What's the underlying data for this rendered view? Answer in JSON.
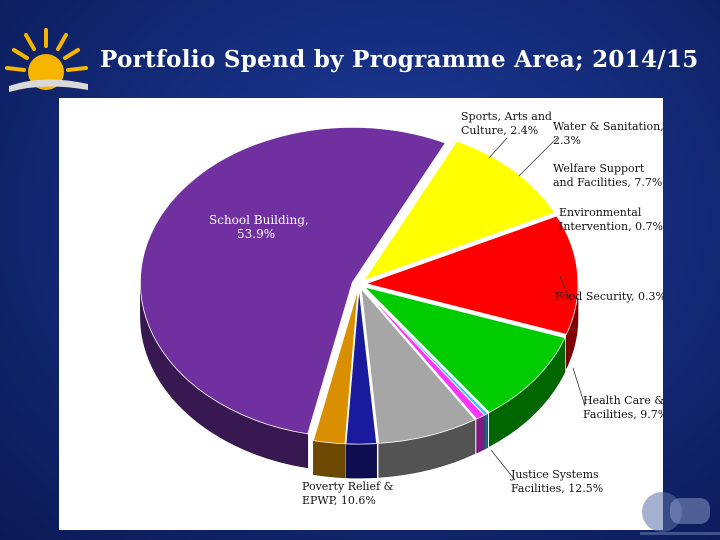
{
  "slide": {
    "title": "Portfolio Spend by Programme Area; 2014/15"
  },
  "colors": {
    "background": "#142c7c",
    "title_text": "#ffffff",
    "sun": "#f7b500"
  },
  "chart_data": {
    "type": "pie",
    "style": "3d-exploded",
    "slices": [
      {
        "label_lines": [
          "School Building,",
          "53.9%"
        ],
        "category": "School Building",
        "value": 53.9,
        "color": "#7030a0"
      },
      {
        "label_lines": [
          "Sports, Arts and",
          "Culture, 2.4%"
        ],
        "category": "Sports, Arts and Culture",
        "value": 2.4,
        "color": "#d98f00"
      },
      {
        "label_lines": [
          "Water & Sanitation,",
          "2.3%"
        ],
        "category": "Water & Sanitation",
        "value": 2.3,
        "color": "#1a1a9e"
      },
      {
        "label_lines": [
          "Welfare Support",
          "and Facilities, 7.7%"
        ],
        "category": "Welfare Support and Facilities",
        "value": 7.7,
        "color": "#a6a6a6"
      },
      {
        "label_lines": [
          "Environmental",
          "Intervention, 0.7%"
        ],
        "category": "Environmental Intervention",
        "value": 0.7,
        "color": "#ff33ff"
      },
      {
        "label_lines": [
          "Food Security, 0.3%"
        ],
        "category": "Food Security",
        "value": 0.3,
        "color": "#33ccff"
      },
      {
        "label_lines": [
          "Health Care &",
          "Facilities, 9.7%"
        ],
        "category": "Health Care & Facilities",
        "value": 9.7,
        "color": "#00cc00"
      },
      {
        "label_lines": [
          "Justice Systems",
          "Facilities, 12.5%"
        ],
        "category": "Justice Systems Facilities",
        "value": 12.5,
        "color": "#ff0000"
      },
      {
        "label_lines": [
          "Poverty Relief &",
          "EPWP, 10.6%"
        ],
        "category": "Poverty Relief & EPWP",
        "value": 10.6,
        "color": "#ffff00"
      }
    ]
  }
}
